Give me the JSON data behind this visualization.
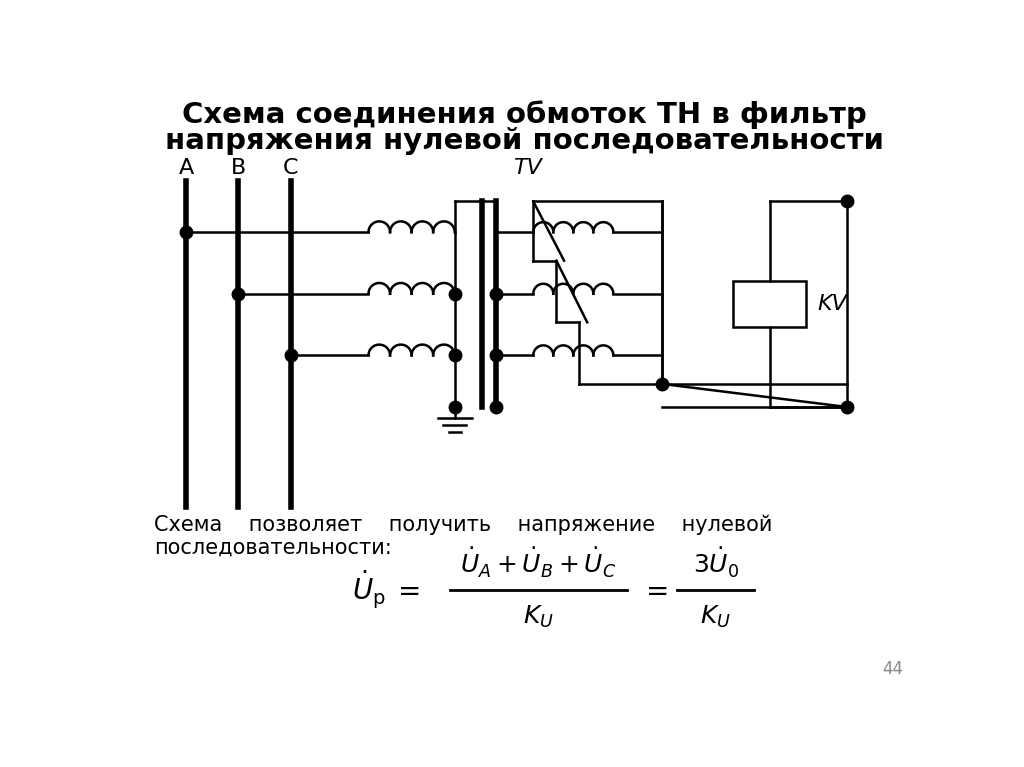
{
  "title_line1": "Схема соединения обмоток ТН в фильтр",
  "title_line2": "напряжения нулевой последовательности",
  "title_fontsize": 21,
  "bg_color": "#ffffff",
  "text_color": "#000000",
  "label_A": "A",
  "label_B": "B",
  "label_C": "C",
  "label_TV": "TV",
  "label_KV": "KV",
  "page_number": "44",
  "bottom_text_line1": "Схема    позволяет    получить    напряжение    нулевой",
  "bottom_text_line2": "последовательности:"
}
